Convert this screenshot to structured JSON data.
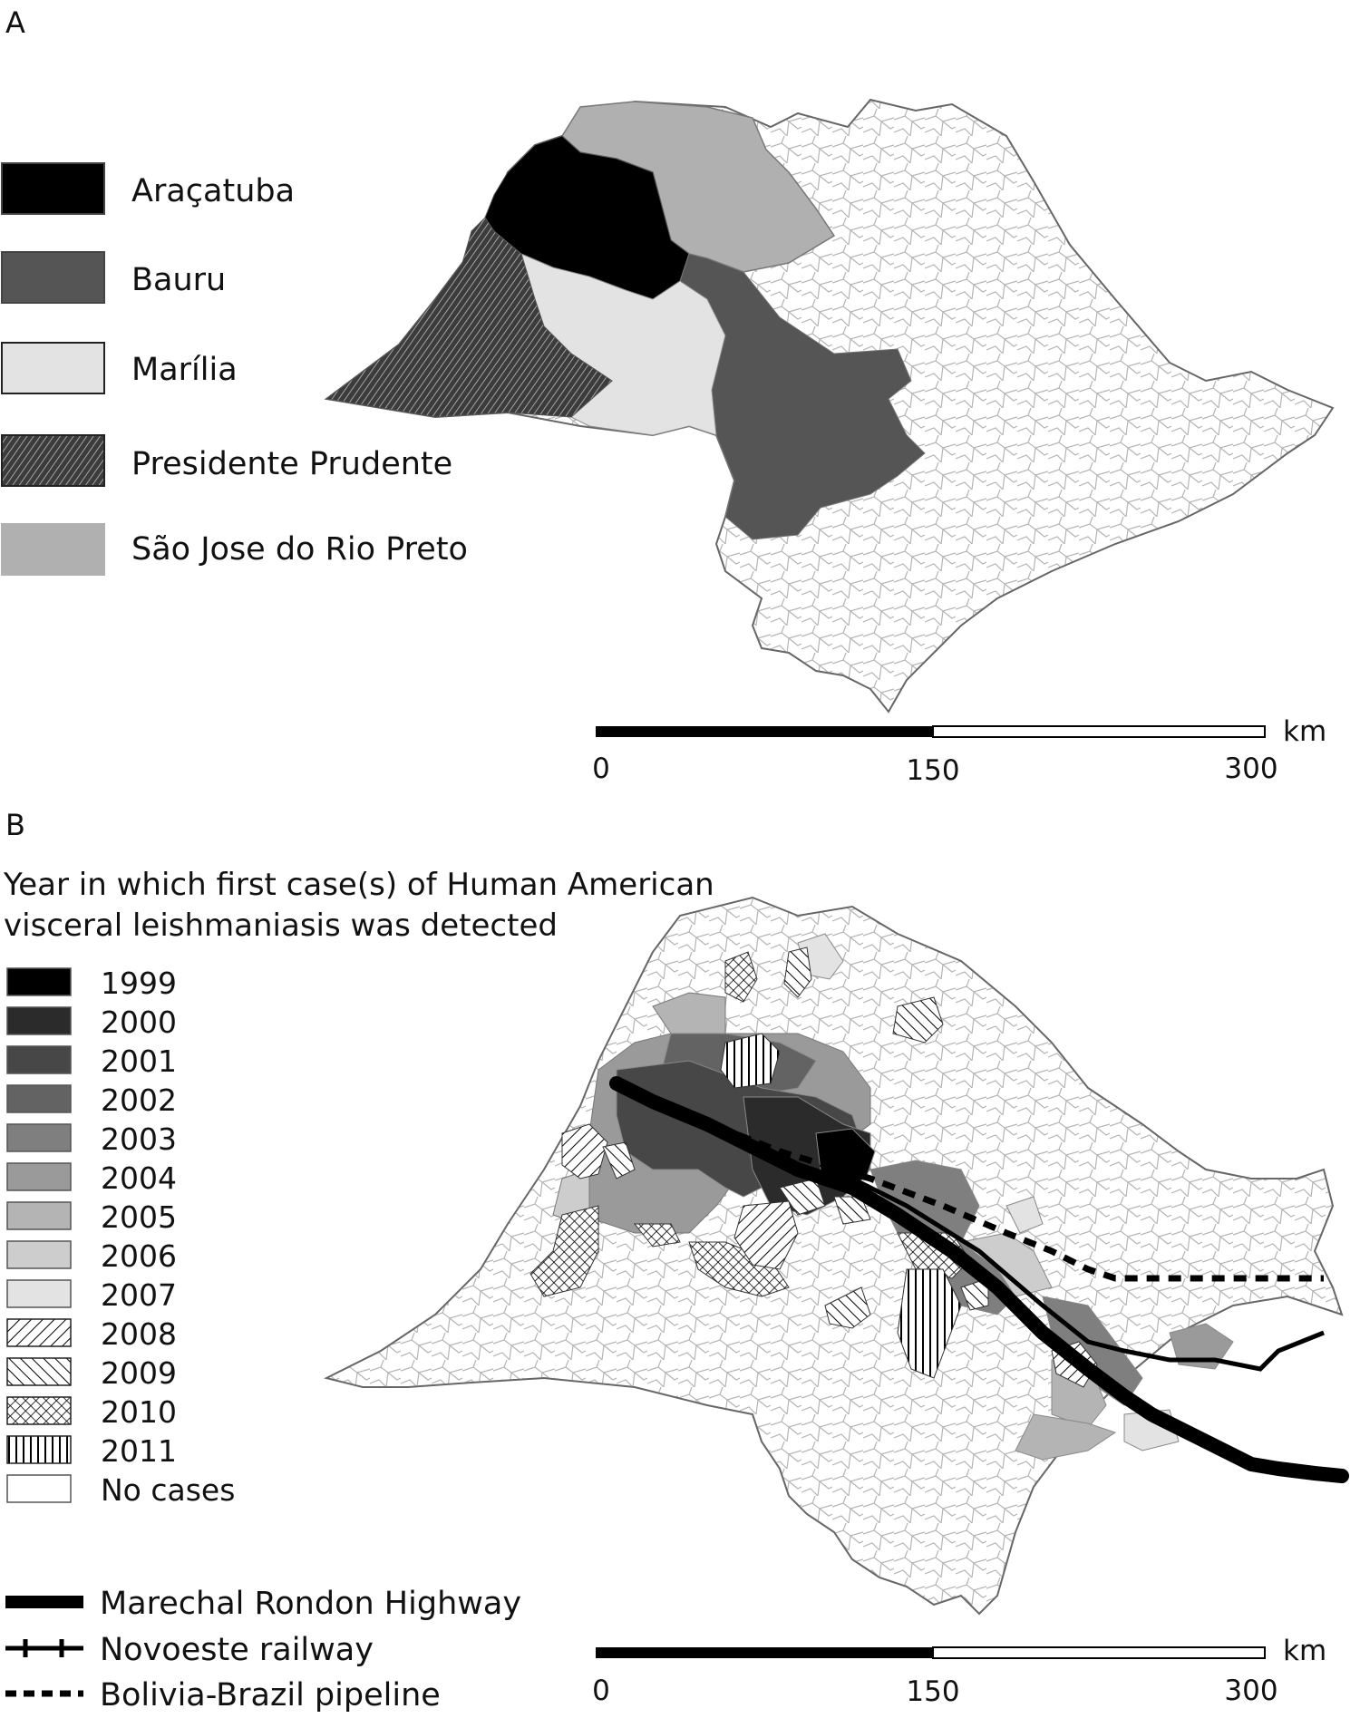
{
  "panel_a": {
    "label": "A",
    "legend": [
      {
        "key": "aracatuba",
        "label": "Araçatuba",
        "fill": "#000000"
      },
      {
        "key": "bauru",
        "label": "Bauru",
        "fill": "#555555"
      },
      {
        "key": "marilia",
        "label": "Marília",
        "fill": "#e3e3e3"
      },
      {
        "key": "prudente",
        "label": "Presidente Prudente",
        "fill": "hatch-dark"
      },
      {
        "key": "sjrp",
        "label": "São Jose do Rio Preto",
        "fill": "#b0b0b0"
      }
    ],
    "scale": {
      "unit": "km",
      "ticks": [
        "0",
        "150",
        "300"
      ]
    }
  },
  "panel_b": {
    "label": "B",
    "title_line1": "Year in which first case(s) of Human American",
    "title_line2": "visceral leishmaniasis was detected",
    "legend": [
      {
        "label": "1999",
        "fill": "#000000"
      },
      {
        "label": "2000",
        "fill": "#2b2b2b"
      },
      {
        "label": "2001",
        "fill": "#474747"
      },
      {
        "label": "2002",
        "fill": "#636363"
      },
      {
        "label": "2003",
        "fill": "#7f7f7f"
      },
      {
        "label": "2004",
        "fill": "#9a9a9a"
      },
      {
        "label": "2005",
        "fill": "#b4b4b4"
      },
      {
        "label": "2006",
        "fill": "#cdcdcd"
      },
      {
        "label": "2007",
        "fill": "#e3e3e3"
      },
      {
        "label": "2008",
        "fill": "hatch-fwd"
      },
      {
        "label": "2009",
        "fill": "hatch-back"
      },
      {
        "label": "2010",
        "fill": "hatch-cross"
      },
      {
        "label": "2011",
        "fill": "hatch-vert"
      },
      {
        "label": "No cases",
        "fill": "#ffffff"
      }
    ],
    "lines_legend": [
      {
        "key": "highway",
        "label": "Marechal Rondon Highway"
      },
      {
        "key": "railway",
        "label": "Novoeste railway"
      },
      {
        "key": "pipeline",
        "label": "Bolivia-Brazil pipeline"
      }
    ],
    "scale": {
      "unit": "km",
      "ticks": [
        "0",
        "150",
        "300"
      ]
    }
  }
}
